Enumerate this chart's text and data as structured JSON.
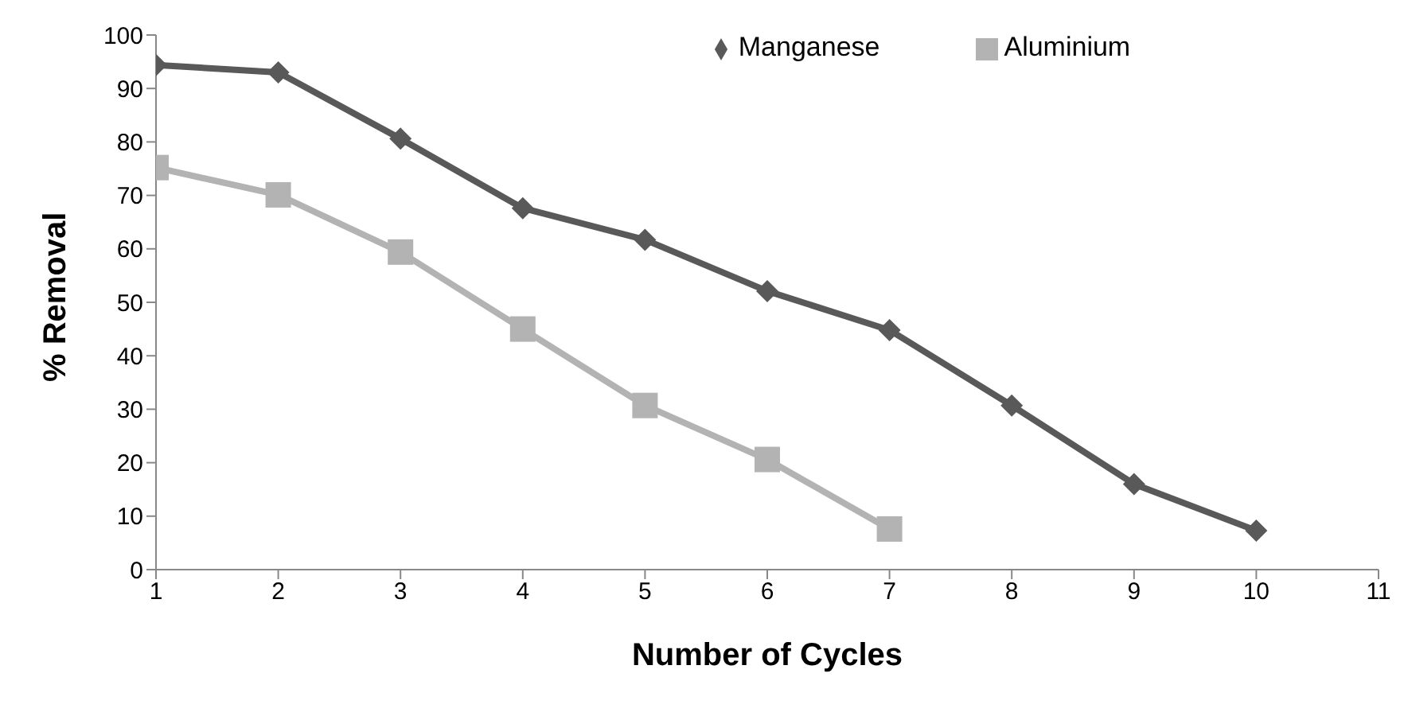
{
  "chart_data": {
    "type": "line",
    "xlabel": "Number of Cycles",
    "ylabel": "% Removal",
    "xlim": [
      1,
      11
    ],
    "xticks": [
      1,
      2,
      3,
      4,
      5,
      6,
      7,
      8,
      9,
      10,
      11
    ],
    "ylim": [
      0,
      100
    ],
    "yticks": [
      0,
      10,
      20,
      30,
      40,
      50,
      60,
      70,
      80,
      90,
      100
    ],
    "legend": "top right",
    "series": [
      {
        "name": "Manganese",
        "color": "#595959",
        "marker": "diamond",
        "x": [
          1,
          2,
          3,
          4,
          5,
          6,
          7,
          8,
          9,
          10
        ],
        "values": [
          94.4,
          93,
          80.6,
          67.6,
          61.7,
          52.1,
          44.8,
          30.7,
          16,
          7.3
        ]
      },
      {
        "name": "Aluminium",
        "color": "#b3b3b3",
        "marker": "square",
        "x": [
          1,
          2,
          3,
          4,
          5,
          6,
          7
        ],
        "values": [
          75.2,
          70.1,
          59.4,
          45,
          30.7,
          20.6,
          7.6
        ]
      }
    ]
  }
}
